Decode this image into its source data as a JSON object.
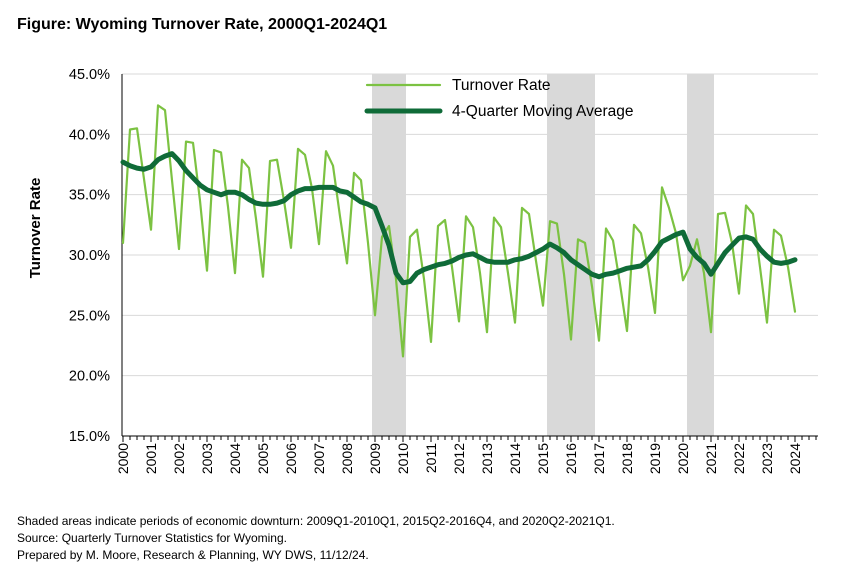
{
  "figure_title": "Figure: Wyoming Turnover Rate, 2000Q1-2024Q1",
  "notes": [
    "Shaded areas indicate periods of economic downturn: 2009Q1-2010Q1, 2015Q2-2016Q4, and 2020Q2-2021Q1.",
    "Source: Quarterly Turnover Statistics for Wyoming.",
    "Prepared by M. Moore, Research & Planning, WY DWS, 11/12/24."
  ],
  "colors": {
    "turnover": "#7cc242",
    "moving_avg": "#0f6b38",
    "recession": "#d9d9d9",
    "grid": "#d9d9d9"
  },
  "chart_data": {
    "type": "line",
    "title": "Figure: Wyoming Turnover Rate, 2000Q1-2024Q1",
    "xlabel": "",
    "ylabel": "Turnover Rate",
    "ylim": [
      15,
      45
    ],
    "yticks": [
      "15.0%",
      "20.0%",
      "25.0%",
      "30.0%",
      "35.0%",
      "40.0%",
      "45.0%"
    ],
    "xticks": [
      "2000",
      "2001",
      "2002",
      "2003",
      "2004",
      "2005",
      "2006",
      "2007",
      "2008",
      "2009",
      "2010",
      "2011",
      "2012",
      "2013",
      "2014",
      "2015",
      "2016",
      "2017",
      "2018",
      "2019",
      "2020",
      "2021",
      "2022",
      "2023",
      "2024"
    ],
    "grid": true,
    "legend_position": "top-center",
    "start_year": 2000,
    "recessions": [
      {
        "start": "2009Q1",
        "end": "2010Q1"
      },
      {
        "start": "2015Q2",
        "end": "2016Q4"
      },
      {
        "start": "2020Q2",
        "end": "2021Q1"
      }
    ],
    "series": [
      {
        "name": "Turnover Rate",
        "values": [
          31.0,
          40.4,
          40.5,
          36.3,
          32.1,
          42.4,
          42.0,
          36.2,
          30.5,
          39.4,
          39.3,
          34.5,
          28.7,
          38.7,
          38.5,
          34.0,
          28.5,
          37.9,
          37.2,
          33.0,
          28.2,
          37.8,
          37.9,
          34.5,
          30.6,
          38.8,
          38.3,
          35.5,
          30.9,
          38.6,
          37.4,
          33.2,
          29.3,
          36.8,
          36.2,
          31.0,
          25.0,
          31.5,
          32.4,
          28.0,
          21.6,
          31.5,
          32.1,
          28.0,
          22.8,
          32.4,
          32.9,
          29.0,
          24.5,
          33.2,
          32.3,
          28.5,
          23.6,
          33.1,
          32.3,
          28.5,
          24.4,
          33.9,
          33.4,
          29.5,
          25.8,
          32.8,
          32.6,
          28.4,
          23.0,
          31.3,
          31.0,
          27.4,
          22.9,
          32.2,
          31.2,
          27.6,
          23.7,
          32.5,
          31.8,
          29.0,
          25.2,
          35.6,
          33.9,
          31.8,
          27.9,
          29.1,
          31.3,
          28.5,
          23.6,
          33.4,
          33.5,
          31.0,
          26.8,
          34.1,
          33.4,
          29.0,
          24.4,
          32.1,
          31.6,
          29.0,
          25.3
        ]
      },
      {
        "name": "4-Quarter Moving Average",
        "values": [
          37.7,
          37.4,
          37.2,
          37.1,
          37.3,
          37.9,
          38.2,
          38.4,
          37.8,
          37.0,
          36.4,
          35.8,
          35.4,
          35.2,
          35.0,
          35.2,
          35.2,
          35.0,
          34.6,
          34.3,
          34.2,
          34.2,
          34.3,
          34.5,
          35.0,
          35.3,
          35.5,
          35.5,
          35.6,
          35.6,
          35.6,
          35.3,
          35.2,
          34.8,
          34.4,
          34.2,
          33.9,
          32.4,
          30.8,
          28.5,
          27.7,
          27.8,
          28.5,
          28.8,
          29.0,
          29.2,
          29.3,
          29.5,
          29.8,
          30.0,
          30.1,
          29.8,
          29.5,
          29.4,
          29.4,
          29.4,
          29.6,
          29.7,
          29.9,
          30.2,
          30.5,
          30.9,
          30.6,
          30.2,
          29.6,
          29.2,
          28.8,
          28.4,
          28.2,
          28.4,
          28.5,
          28.7,
          28.9,
          29.0,
          29.1,
          29.6,
          30.3,
          31.1,
          31.4,
          31.7,
          31.9,
          30.5,
          29.8,
          29.3,
          28.4,
          29.3,
          30.2,
          30.8,
          31.4,
          31.5,
          31.3,
          30.5,
          29.9,
          29.4,
          29.3,
          29.4,
          29.6
        ]
      }
    ]
  }
}
